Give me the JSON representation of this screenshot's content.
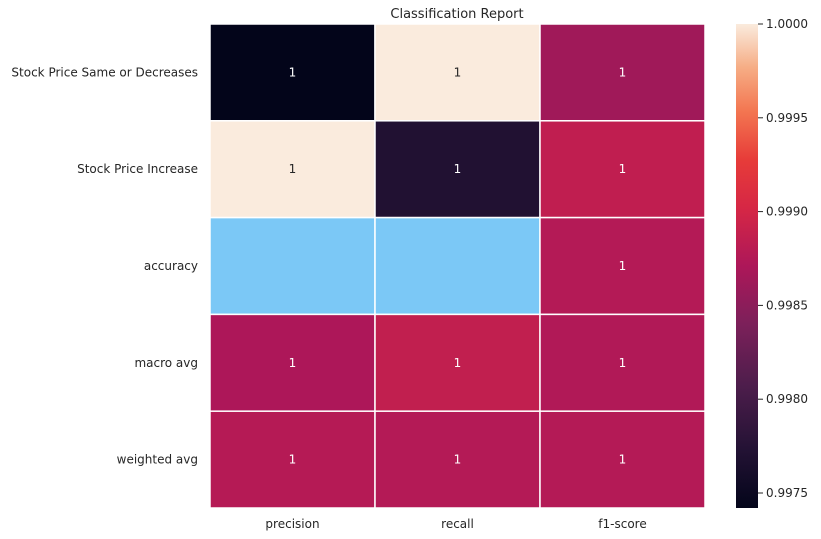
{
  "chart_data": {
    "type": "heatmap",
    "title": "Classification Report",
    "rows": [
      "Stock Price Same or Decreases",
      "Stock Price Increase",
      "accuracy",
      "macro avg",
      "weighted avg"
    ],
    "columns": [
      "precision",
      "recall",
      "f1-score"
    ],
    "values": [
      [
        0.99742,
        1.0,
        0.99863
      ],
      [
        1.0,
        0.99771,
        0.99885
      ],
      [
        null,
        null,
        0.99876
      ],
      [
        0.99871,
        0.99886,
        0.99874
      ],
      [
        0.99877,
        0.99876,
        0.99876
      ]
    ],
    "cell_labels": [
      [
        "1",
        "1",
        "1"
      ],
      [
        "1",
        "1",
        "1"
      ],
      [
        "",
        "",
        "1"
      ],
      [
        "1",
        "1",
        "1"
      ],
      [
        "1",
        "1",
        "1"
      ]
    ],
    "missing_color": "#7bc8f6",
    "colormap": "rocket",
    "colorbar": {
      "vmin": 0.99742,
      "vmax": 1.0,
      "ticks": [
        0.9975,
        0.998,
        0.9985,
        0.999,
        0.9995,
        1.0
      ],
      "tick_labels": [
        "0.9975",
        "0.9980",
        "0.9985",
        "0.9990",
        "0.9995",
        "1.0000"
      ]
    },
    "grid": false,
    "xlabel": "",
    "ylabel": ""
  }
}
